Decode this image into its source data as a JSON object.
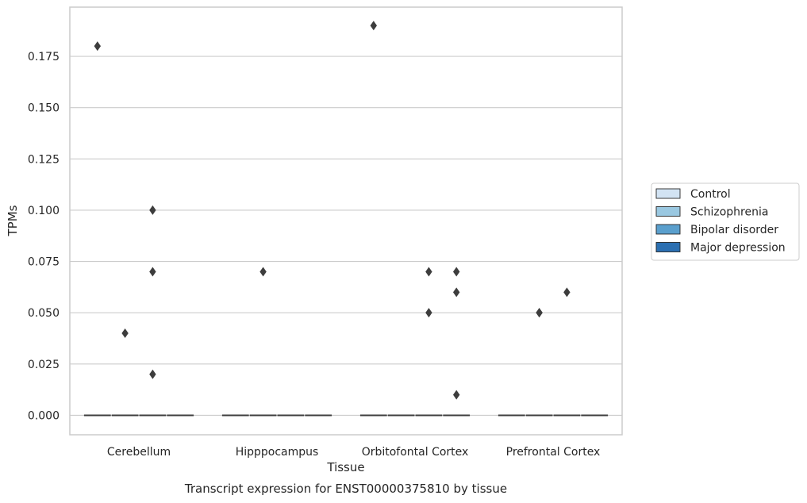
{
  "caption": "Transcript expression for ENST00000375810 by tissue",
  "chart_data": {
    "type": "box",
    "title": "",
    "xlabel": "Tissue",
    "ylabel": "TPMs",
    "categories": [
      "Cerebellum",
      "Hipppocampus",
      "Orbitofontal Cortex",
      "Prefrontal Cortex"
    ],
    "ylim": [
      -0.0095,
      0.199
    ],
    "yticks": [
      0.0,
      0.025,
      0.05,
      0.075,
      0.1,
      0.125,
      0.15,
      0.175
    ],
    "ytick_labels": [
      "0.000",
      "0.025",
      "0.050",
      "0.075",
      "0.100",
      "0.125",
      "0.150",
      "0.175"
    ],
    "grid": "horizontal",
    "legend_position": "right",
    "series": [
      {
        "name": "Control",
        "color": "#d2e3f3",
        "medians": [
          0,
          0,
          0,
          0
        ],
        "outliers": [
          [
            0.18
          ],
          [],
          [
            0.19
          ],
          []
        ]
      },
      {
        "name": "Schizophrenia",
        "color": "#9ac8e1",
        "medians": [
          0,
          0,
          0,
          0
        ],
        "outliers": [
          [
            0.04
          ],
          [
            0.07
          ],
          [],
          [
            0.05,
            0.05
          ]
        ]
      },
      {
        "name": "Bipolar disorder",
        "color": "#5a9fcd",
        "medians": [
          0,
          0,
          0,
          0
        ],
        "outliers": [
          [
            0.1,
            0.07,
            0.02
          ],
          [],
          [
            0.07,
            0.05
          ],
          [
            0.06
          ]
        ]
      },
      {
        "name": "Major depression",
        "color": "#2b6fb1",
        "medians": [
          0,
          0,
          0,
          0
        ],
        "outliers": [
          [],
          [],
          [
            0.07,
            0.06,
            0.01
          ],
          []
        ]
      }
    ]
  }
}
